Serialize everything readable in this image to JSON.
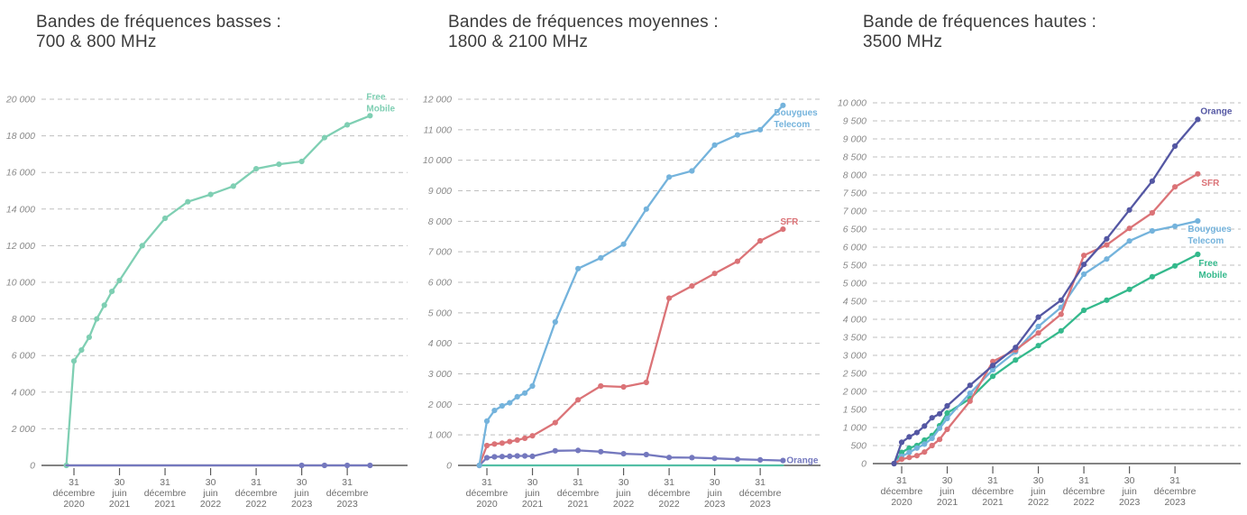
{
  "page": {
    "background": "#ffffff"
  },
  "chart_data": [
    {
      "type": "line",
      "title_lines": [
        "Bandes de fréquences basses :",
        "700 & 800 MHz"
      ],
      "x": [
        "2020-11",
        "2020-12",
        "2021-01",
        "2021-02",
        "2021-03",
        "2021-04",
        "2021-05",
        "2021-06",
        "2021-09",
        "2021-12",
        "2022-03",
        "2022-06",
        "2022-09",
        "2022-12",
        "2023-03",
        "2023-06",
        "2023-09",
        "2023-12",
        "2024-03"
      ],
      "x_months": [
        0,
        1,
        2,
        3,
        4,
        5,
        6,
        7,
        10,
        13,
        16,
        19,
        22,
        25,
        28,
        31,
        34,
        37,
        40
      ],
      "xtick_months": [
        1,
        7,
        13,
        19,
        25,
        31,
        37
      ],
      "xtick_labels": [
        [
          "31",
          "décembre",
          "2020"
        ],
        [
          "30",
          "juin",
          "2021"
        ],
        [
          "31",
          "décembre",
          "2021"
        ],
        [
          "30",
          "juin",
          "2022"
        ],
        [
          "31",
          "décembre",
          "2022"
        ],
        [
          "30",
          "juin",
          "2023"
        ],
        [
          "31",
          "décembre",
          "2023"
        ]
      ],
      "ylim": [
        0,
        20000
      ],
      "ytick_step": 2000,
      "ytick_labels": [
        "0",
        "2 000",
        "4 000",
        "6 000",
        "8 000",
        "10 000",
        "12 000",
        "14 000",
        "16 000",
        "18 000",
        "20 000"
      ],
      "grid": "dashed",
      "legend_position": "end-of-line",
      "series": [
        {
          "name": "SFR",
          "color": "#DB7377",
          "values": [
            0,
            0,
            0,
            0,
            0,
            0,
            0,
            0,
            0,
            0,
            0,
            0,
            0,
            0,
            0,
            0,
            0,
            0,
            0
          ],
          "dots_at_months": [],
          "label_lines": [],
          "label_dx": 0,
          "label_dy": 0
        },
        {
          "name": "Bouygues Telecom",
          "color": "#74B3DC",
          "values": [
            0,
            0,
            0,
            0,
            0,
            0,
            0,
            0,
            0,
            0,
            0,
            0,
            0,
            0,
            0,
            0,
            0,
            0,
            0
          ],
          "dots_at_months": [],
          "label_lines": [],
          "label_dx": 0,
          "label_dy": 0
        },
        {
          "name": "Free Mobile",
          "color": "#7FCFB3",
          "values": [
            0,
            5700,
            6300,
            7000,
            8000,
            8750,
            9500,
            10100,
            12000,
            13500,
            14400,
            14800,
            15250,
            16200,
            16450,
            16600,
            17900,
            18600,
            19100
          ],
          "label_lines": [
            "Free",
            "Mobile"
          ],
          "label_dx": -4,
          "label_dy": -18
        },
        {
          "name": "Orange",
          "color": "#7478BE",
          "values": [
            0,
            0,
            0,
            0,
            0,
            0,
            0,
            0,
            0,
            0,
            0,
            0,
            0,
            0,
            0,
            0,
            0,
            0,
            0
          ],
          "dots_at_months": [
            31,
            34,
            37,
            40
          ],
          "label_lines": [],
          "label_dx": 0,
          "label_dy": 0
        }
      ]
    },
    {
      "type": "line",
      "title_lines": [
        "Bandes de fréquences moyennes :",
        "1800 & 2100 MHz"
      ],
      "x": [
        "2020-11",
        "2020-12",
        "2021-01",
        "2021-02",
        "2021-03",
        "2021-04",
        "2021-05",
        "2021-06",
        "2021-09",
        "2021-12",
        "2022-03",
        "2022-06",
        "2022-09",
        "2022-12",
        "2023-03",
        "2023-06",
        "2023-09",
        "2023-12",
        "2024-03"
      ],
      "x_months": [
        0,
        1,
        2,
        3,
        4,
        5,
        6,
        7,
        10,
        13,
        16,
        19,
        22,
        25,
        28,
        31,
        34,
        37,
        40
      ],
      "xtick_months": [
        1,
        7,
        13,
        19,
        25,
        31,
        37
      ],
      "xtick_labels": [
        [
          "31",
          "décembre",
          "2020"
        ],
        [
          "30",
          "juin",
          "2021"
        ],
        [
          "31",
          "décembre",
          "2021"
        ],
        [
          "30",
          "juin",
          "2022"
        ],
        [
          "31",
          "décembre",
          "2022"
        ],
        [
          "30",
          "juin",
          "2023"
        ],
        [
          "31",
          "décembre",
          "2023"
        ]
      ],
      "ylim": [
        0,
        12000
      ],
      "ytick_step": 1000,
      "ytick_labels": [
        "0",
        "1 000",
        "2 000",
        "3 000",
        "4 000",
        "5 000",
        "6 000",
        "7 000",
        "8 000",
        "9 000",
        "10 000",
        "11 000",
        "12 000"
      ],
      "grid": "dashed",
      "legend_position": "end-of-line",
      "series": [
        {
          "name": "Free Mobile",
          "color": "#53BFA5",
          "values": [
            0,
            0,
            0,
            0,
            0,
            0,
            0,
            0,
            0,
            0,
            0,
            0,
            0,
            0,
            0,
            0,
            0,
            0,
            0
          ],
          "dots_at_months": [],
          "label_lines": [],
          "label_dx": 0,
          "label_dy": 0
        },
        {
          "name": "Orange",
          "color": "#7478BE",
          "values": [
            0,
            250,
            280,
            290,
            300,
            310,
            310,
            300,
            480,
            490,
            450,
            380,
            355,
            260,
            255,
            230,
            200,
            180,
            160
          ],
          "label_lines": [
            "Orange"
          ],
          "label_dx": 4,
          "label_dy": 3
        },
        {
          "name": "SFR",
          "color": "#DB7377",
          "values": [
            0,
            650,
            700,
            730,
            780,
            830,
            890,
            970,
            1400,
            2150,
            2600,
            2570,
            2720,
            5480,
            5880,
            6290,
            6690,
            7360,
            7740
          ],
          "label_lines": [
            "SFR"
          ],
          "label_dx": -3,
          "label_dy": -5
        },
        {
          "name": "Bouygues Telecom",
          "color": "#74B3DC",
          "values": [
            0,
            1450,
            1800,
            1950,
            2050,
            2250,
            2370,
            2600,
            4700,
            6450,
            6800,
            7250,
            8400,
            9450,
            9650,
            10500,
            10830,
            11000,
            11800
          ],
          "label_lines": [
            "Bouygues",
            "Telecom"
          ],
          "label_dx": -10,
          "label_dy": 11
        }
      ]
    },
    {
      "type": "line",
      "title_lines": [
        "Bande de fréquences hautes :",
        "3500 MHz"
      ],
      "x": [
        "2020-11",
        "2020-12",
        "2021-01",
        "2021-02",
        "2021-03",
        "2021-04",
        "2021-05",
        "2021-06",
        "2021-09",
        "2021-12",
        "2022-03",
        "2022-06",
        "2022-09",
        "2022-12",
        "2023-03",
        "2023-06",
        "2023-09",
        "2023-12",
        "2024-03"
      ],
      "x_months": [
        0,
        1,
        2,
        3,
        4,
        5,
        6,
        7,
        10,
        13,
        16,
        19,
        22,
        25,
        28,
        31,
        34,
        37,
        40
      ],
      "xtick_months": [
        1,
        7,
        13,
        19,
        25,
        31,
        37
      ],
      "xtick_labels": [
        [
          "31",
          "décembre",
          "2020"
        ],
        [
          "30",
          "juin",
          "2021"
        ],
        [
          "31",
          "décembre",
          "2021"
        ],
        [
          "30",
          "juin",
          "2022"
        ],
        [
          "31",
          "décembre",
          "2022"
        ],
        [
          "30",
          "juin",
          "2023"
        ],
        [
          "31",
          "décembre",
          "2023"
        ]
      ],
      "ylim": [
        0,
        10000
      ],
      "ytick_step": 500,
      "ytick_labels": [
        "0",
        "500",
        "1 000",
        "1 500",
        "2 000",
        "2 500",
        "3 000",
        "3 500",
        "4 000",
        "4 500",
        "5 000",
        "5 500",
        "6 000",
        "6 500",
        "7 000",
        "7 500",
        "8 000",
        "8 500",
        "9 000",
        "9 500",
        "10 000"
      ],
      "grid": "dashed",
      "legend_position": "end-of-line",
      "series": [
        {
          "name": "Free Mobile",
          "color": "#34B98C",
          "values": [
            0,
            310,
            430,
            500,
            650,
            780,
            1050,
            1400,
            1800,
            2420,
            2870,
            3270,
            3680,
            4250,
            4530,
            4830,
            5180,
            5480,
            5800
          ],
          "label_lines": [
            "Free",
            "Mobile"
          ],
          "label_dx": 1,
          "label_dy": 13
        },
        {
          "name": "Bouygues Telecom",
          "color": "#74B3DC",
          "values": [
            0,
            200,
            310,
            430,
            540,
            700,
            980,
            1250,
            1950,
            2600,
            3100,
            3800,
            4330,
            5250,
            5670,
            6170,
            6450,
            6580,
            6725
          ],
          "label_lines": [
            "Bouygues",
            "Telecom"
          ],
          "label_dx": -11,
          "label_dy": 12
        },
        {
          "name": "SFR",
          "color": "#DB7377",
          "values": [
            0,
            120,
            170,
            220,
            320,
            500,
            670,
            950,
            1730,
            2830,
            3150,
            3620,
            4140,
            5770,
            6060,
            6520,
            6950,
            7670,
            8030
          ],
          "label_lines": [
            "SFR"
          ],
          "label_dx": 4,
          "label_dy": 13
        },
        {
          "name": "Orange",
          "color": "#5457A3",
          "values": [
            0,
            590,
            740,
            860,
            1040,
            1270,
            1380,
            1600,
            2170,
            2720,
            3220,
            4060,
            4530,
            5520,
            6230,
            7030,
            7830,
            8800,
            9540
          ],
          "label_lines": [
            "Orange"
          ],
          "label_dx": 3,
          "label_dy": -6
        }
      ]
    }
  ]
}
